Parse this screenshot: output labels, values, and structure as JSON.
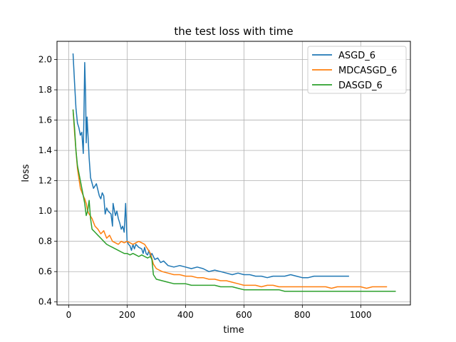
{
  "chart_data": {
    "type": "line",
    "title": "the test loss with time",
    "xlabel": "time",
    "ylabel": "loss",
    "xlim": [
      -40,
      1170
    ],
    "ylim": [
      0.38,
      2.12
    ],
    "xticks": [
      0,
      200,
      400,
      600,
      800,
      1000
    ],
    "yticks": [
      0.4,
      0.6,
      0.8,
      1.0,
      1.2,
      1.4,
      1.6,
      1.8,
      2.0
    ],
    "xtick_labels": [
      "0",
      "200",
      "400",
      "600",
      "800",
      "1000"
    ],
    "ytick_labels": [
      "0.4",
      "0.6",
      "0.8",
      "1.0",
      "1.2",
      "1.4",
      "1.6",
      "1.8",
      "2.0"
    ],
    "grid": true,
    "legend": "top-right",
    "series": [
      {
        "name": "ASGD_6",
        "color": "#1f77b4",
        "x": [
          15,
          20,
          25,
          30,
          35,
          40,
          45,
          50,
          52,
          55,
          58,
          60,
          63,
          66,
          70,
          75,
          85,
          95,
          105,
          110,
          115,
          120,
          125,
          130,
          135,
          145,
          150,
          152,
          155,
          160,
          165,
          170,
          175,
          180,
          185,
          190,
          195,
          200,
          205,
          210,
          215,
          220,
          225,
          230,
          240,
          250,
          255,
          260,
          265,
          270,
          275,
          280,
          285,
          295,
          305,
          315,
          325,
          340,
          360,
          380,
          400,
          420,
          440,
          460,
          480,
          500,
          520,
          540,
          560,
          580,
          600,
          620,
          640,
          660,
          680,
          700,
          720,
          740,
          760,
          780,
          800,
          820,
          840,
          860,
          880,
          900,
          920,
          940,
          960
        ],
        "y": [
          2.04,
          1.85,
          1.68,
          1.58,
          1.55,
          1.5,
          1.52,
          1.38,
          1.6,
          1.98,
          1.75,
          1.45,
          1.62,
          1.5,
          1.35,
          1.22,
          1.15,
          1.18,
          1.1,
          1.08,
          1.12,
          1.1,
          0.98,
          1.02,
          1.0,
          0.98,
          0.9,
          1.05,
          1.02,
          0.97,
          1.0,
          0.95,
          0.92,
          0.88,
          0.9,
          0.86,
          1.05,
          0.8,
          0.78,
          0.77,
          0.74,
          0.78,
          0.75,
          0.78,
          0.76,
          0.75,
          0.72,
          0.76,
          0.72,
          0.71,
          0.74,
          0.7,
          0.72,
          0.68,
          0.69,
          0.66,
          0.67,
          0.64,
          0.63,
          0.64,
          0.63,
          0.62,
          0.63,
          0.62,
          0.6,
          0.61,
          0.6,
          0.59,
          0.58,
          0.59,
          0.58,
          0.58,
          0.57,
          0.57,
          0.56,
          0.57,
          0.57,
          0.57,
          0.58,
          0.57,
          0.56,
          0.56,
          0.57,
          0.57,
          0.57,
          0.57,
          0.57,
          0.57,
          0.57
        ]
      },
      {
        "name": "MDCASGD_6",
        "color": "#ff7f0e",
        "x": [
          15,
          20,
          25,
          30,
          40,
          50,
          55,
          60,
          65,
          70,
          80,
          90,
          100,
          110,
          120,
          130,
          140,
          150,
          160,
          170,
          180,
          190,
          200,
          210,
          220,
          230,
          240,
          250,
          260,
          270,
          280,
          290,
          300,
          320,
          340,
          360,
          380,
          400,
          420,
          440,
          460,
          480,
          500,
          520,
          540,
          560,
          580,
          600,
          620,
          640,
          660,
          680,
          700,
          720,
          740,
          760,
          780,
          800,
          820,
          840,
          860,
          880,
          900,
          920,
          940,
          960,
          980,
          1000,
          1020,
          1040,
          1060,
          1080,
          1090
        ],
        "y": [
          1.67,
          1.52,
          1.4,
          1.28,
          1.15,
          1.1,
          1.08,
          1.05,
          1.0,
          0.98,
          0.95,
          0.9,
          0.88,
          0.85,
          0.87,
          0.82,
          0.84,
          0.8,
          0.79,
          0.78,
          0.8,
          0.79,
          0.8,
          0.79,
          0.78,
          0.79,
          0.8,
          0.79,
          0.78,
          0.75,
          0.72,
          0.65,
          0.62,
          0.6,
          0.59,
          0.58,
          0.58,
          0.57,
          0.57,
          0.56,
          0.56,
          0.55,
          0.55,
          0.54,
          0.54,
          0.53,
          0.52,
          0.51,
          0.51,
          0.51,
          0.5,
          0.51,
          0.51,
          0.5,
          0.5,
          0.5,
          0.5,
          0.5,
          0.5,
          0.5,
          0.5,
          0.5,
          0.49,
          0.5,
          0.5,
          0.5,
          0.5,
          0.5,
          0.49,
          0.5,
          0.5,
          0.5,
          0.5
        ]
      },
      {
        "name": "DASGD_6",
        "color": "#2ca02c",
        "x": [
          15,
          20,
          25,
          30,
          40,
          50,
          55,
          60,
          65,
          70,
          75,
          80,
          90,
          100,
          110,
          120,
          130,
          140,
          150,
          160,
          170,
          180,
          190,
          200,
          210,
          220,
          230,
          240,
          250,
          260,
          270,
          280,
          285,
          290,
          300,
          320,
          340,
          360,
          380,
          400,
          420,
          440,
          460,
          480,
          500,
          520,
          540,
          560,
          580,
          600,
          620,
          640,
          660,
          680,
          700,
          720,
          740,
          760,
          780,
          800,
          820,
          840,
          860,
          880,
          900,
          920,
          940,
          960,
          980,
          1000,
          1020,
          1040,
          1060,
          1080,
          1100,
          1120
        ],
        "y": [
          1.67,
          1.55,
          1.4,
          1.3,
          1.2,
          1.1,
          1.05,
          0.97,
          1.0,
          1.07,
          0.95,
          0.88,
          0.86,
          0.84,
          0.82,
          0.8,
          0.78,
          0.77,
          0.76,
          0.75,
          0.74,
          0.73,
          0.72,
          0.72,
          0.71,
          0.72,
          0.71,
          0.7,
          0.71,
          0.7,
          0.69,
          0.7,
          0.68,
          0.58,
          0.55,
          0.54,
          0.53,
          0.52,
          0.52,
          0.52,
          0.51,
          0.51,
          0.51,
          0.51,
          0.51,
          0.5,
          0.5,
          0.5,
          0.49,
          0.48,
          0.48,
          0.48,
          0.48,
          0.48,
          0.48,
          0.48,
          0.47,
          0.47,
          0.47,
          0.47,
          0.47,
          0.47,
          0.47,
          0.47,
          0.47,
          0.47,
          0.47,
          0.47,
          0.47,
          0.47,
          0.47,
          0.47,
          0.47,
          0.47,
          0.47,
          0.47
        ]
      }
    ]
  }
}
